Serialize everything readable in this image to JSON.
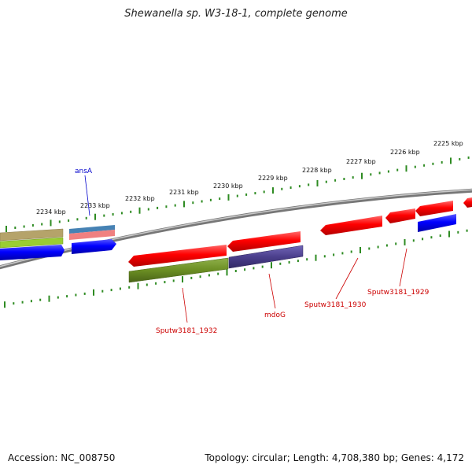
{
  "title": "Shewanella sp. W3-18-1, complete genome",
  "footer": {
    "accession": "Accession: NC_008750",
    "summary": "Topology: circular; Length: 4,708,380 bp; Genes: 4,172"
  },
  "ruler": {
    "labels": [
      "2234 kbp",
      "2233 kbp",
      "2232 kbp",
      "2231 kbp",
      "2230 kbp",
      "2229 kbp",
      "2228 kbp",
      "2227 kbp",
      "2226 kbp",
      "2225 kbp"
    ]
  },
  "gene_labels": [
    {
      "text": "ansA",
      "color": "#0000cc"
    },
    {
      "text": "Sputw3181_1932",
      "color": "#cc0000"
    },
    {
      "text": "mdoG",
      "color": "#cc0000"
    },
    {
      "text": "Sputw3181_1930",
      "color": "#cc0000"
    },
    {
      "text": "Sputw3181_1929",
      "color": "#cc0000"
    }
  ],
  "colors": {
    "backbone": "#8a8a8a",
    "tick": "#2e8b22",
    "red_gene": "#ff0000",
    "blue_gene": "#0000ff",
    "olive_gene": "#6b8e23",
    "purple_gene": "#4b3f8c",
    "tan_gene": "#b5a36a",
    "lime_gene": "#9acd32",
    "steel_gene": "#4682b4",
    "pink_gene": "#f08080"
  }
}
